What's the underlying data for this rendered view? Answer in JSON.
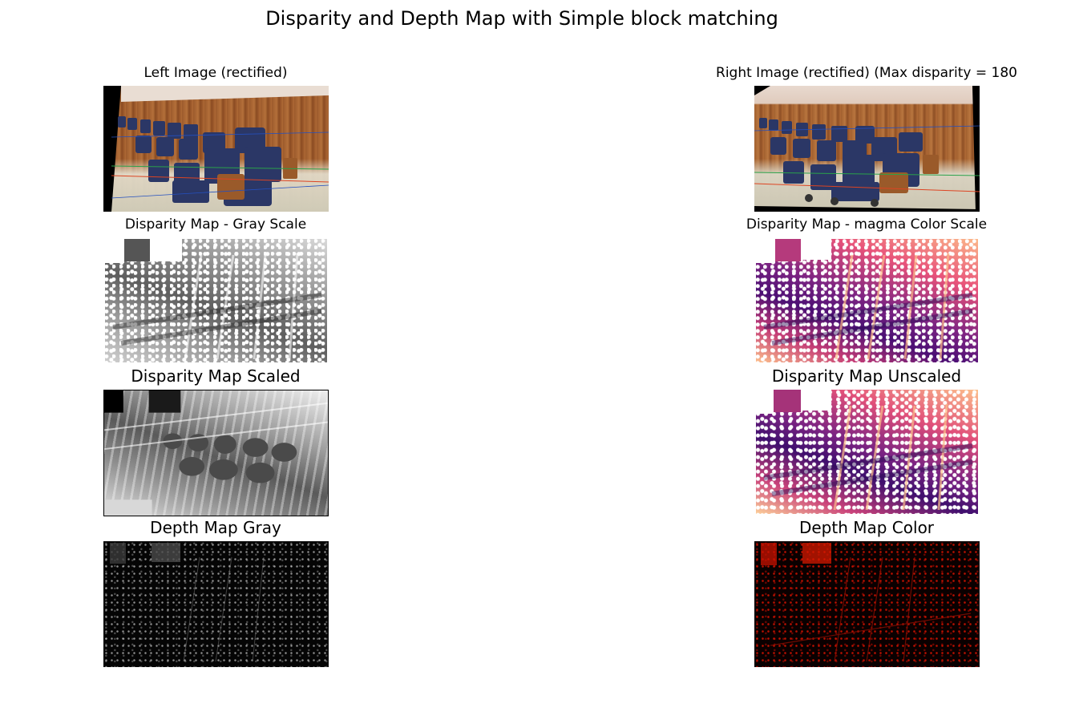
{
  "figure": {
    "title": "Disparity and Depth Map with Simple block matching"
  },
  "panels": {
    "left_image": {
      "title": "Left Image (rectified)"
    },
    "right_image": {
      "title": "Right Image (rectified) (Max disparity = 180"
    },
    "disparity_gray": {
      "title": "Disparity Map - Gray Scale"
    },
    "disparity_magma": {
      "title": "Disparity Map - magma Color Scale"
    },
    "disparity_scaled": {
      "title": "Disparity Map Scaled"
    },
    "disparity_unscaled": {
      "title": "Disparity Map Unscaled"
    },
    "depth_gray": {
      "title": "Depth Map Gray"
    },
    "depth_color": {
      "title": "Depth Map Color"
    }
  },
  "colors": {
    "seat_blue": "#2a3560",
    "wood": "#a96434",
    "magma_dark": "#3b0f70",
    "depth_red": "#e61400"
  }
}
